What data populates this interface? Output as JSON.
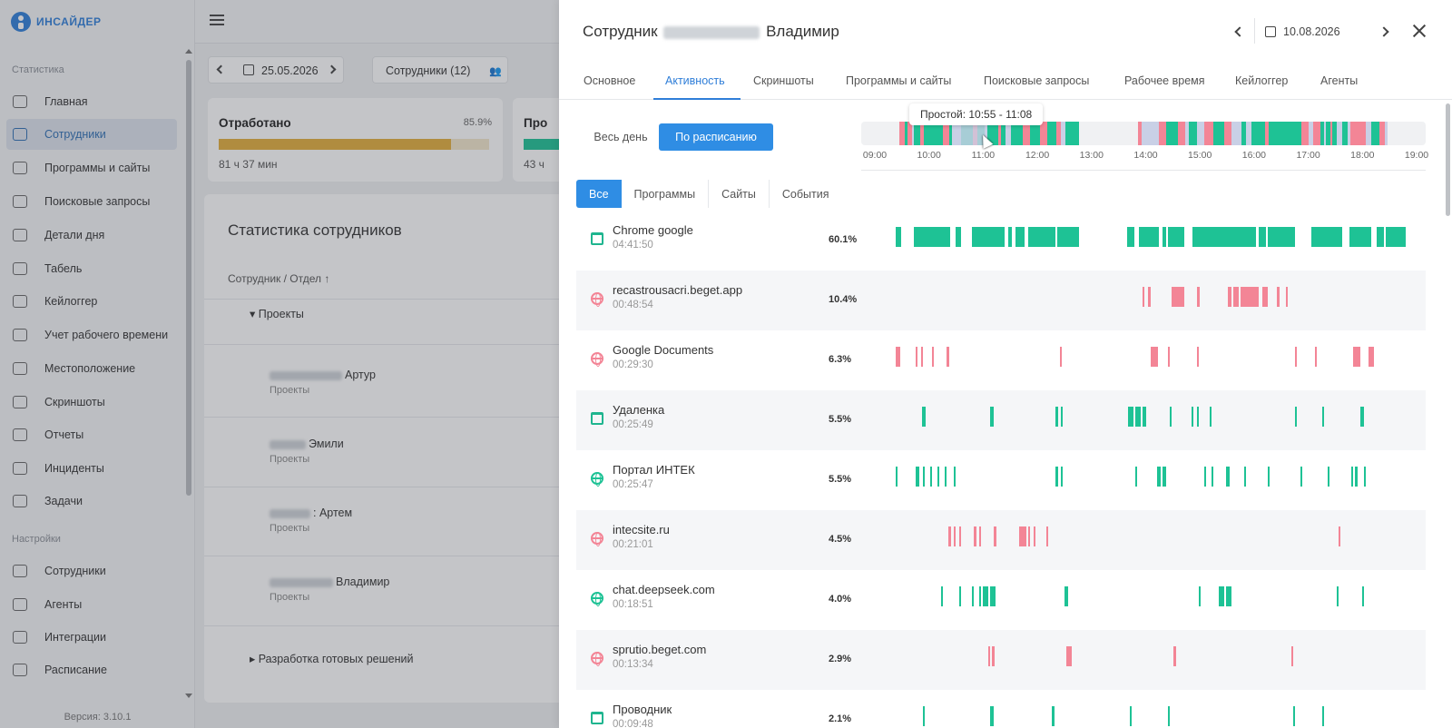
{
  "sidebar": {
    "logo": "ИНСАЙДЕР",
    "section_stats": "Статистика",
    "section_settings": "Настройки",
    "items": [
      {
        "label": "Главная",
        "icon": "grid-icon"
      },
      {
        "label": "Сотрудники",
        "icon": "users-icon",
        "active": true
      },
      {
        "label": "Программы и сайты",
        "icon": "window-icon"
      },
      {
        "label": "Поисковые запросы",
        "icon": "search-icon"
      },
      {
        "label": "Детали дня",
        "icon": "chart-line-icon"
      },
      {
        "label": "Табель",
        "icon": "document-icon"
      },
      {
        "label": "Кейлоггер",
        "icon": "keyboard-icon"
      },
      {
        "label": "Учет рабочего времени",
        "icon": "clock-doc-icon"
      },
      {
        "label": "Местоположение",
        "icon": "location-icon"
      },
      {
        "label": "Скриншоты",
        "icon": "monitor-icon"
      },
      {
        "label": "Отчеты",
        "icon": "report-icon"
      },
      {
        "label": "Инциденты",
        "icon": "alert-icon"
      },
      {
        "label": "Задачи",
        "icon": "check-circle-icon"
      }
    ],
    "settings_items": [
      {
        "label": "Сотрудники",
        "icon": "user-gear-icon"
      },
      {
        "label": "Агенты",
        "icon": "devices-icon"
      },
      {
        "label": "Интеграции",
        "icon": "building-icon"
      },
      {
        "label": "Расписание",
        "icon": "calendar-clock-icon"
      }
    ],
    "version": "Версия: 3.10.1"
  },
  "main": {
    "date": "25.05.2026",
    "employees_button": "Сотрудники (12)",
    "card_worked": {
      "title": "Отработано",
      "percent": "85.9%",
      "value": "81 ч 37 мин",
      "fill": 0.859
    },
    "card_productive": {
      "title": "Про",
      "value": "43 ч"
    },
    "stats_title": "Статистика сотрудников",
    "stats_header": "Сотрудник / Отдел ↑",
    "group_projects": "Проекты",
    "rows": [
      {
        "name": "Артур",
        "dept": "Проекты"
      },
      {
        "name": "Эмили",
        "dept": "Проекты"
      },
      {
        "name": ": Артем",
        "dept": "Проекты"
      },
      {
        "name": "Владимир",
        "dept": "Проекты"
      }
    ],
    "group_solutions": "Разработка готовых решений"
  },
  "drawer": {
    "title_prefix": "Сотрудник",
    "title_suffix": "Владимир",
    "date": "10.08.2026",
    "tabs": [
      "Основное",
      "Активность",
      "Скриншоты",
      "Программы и сайты",
      "Поисковые запросы",
      "Рабочее время",
      "Кейлоггер",
      "Агенты"
    ],
    "active_tab": "Активность",
    "mode_all_day": "Весь день",
    "mode_schedule": "По расписанию",
    "tooltip": "Простой: 10:55 - 11:08",
    "timeline_ticks": [
      "09:00",
      "10:00",
      "11:00",
      "12:00",
      "13:00",
      "14:00",
      "15:00",
      "16:00",
      "17:00",
      "18:00",
      "19:00"
    ],
    "filters": [
      "Все",
      "Программы",
      "Сайты",
      "События"
    ],
    "colors": {
      "productive": "#1ec295",
      "unproductive": "#f38596",
      "idle": "#c9d0e6",
      "accent": "#2f8de4"
    },
    "apps": [
      {
        "name": "Chrome google",
        "time": "04:41:50",
        "percent": "60.1%",
        "icon": "window-icon",
        "color": "productive"
      },
      {
        "name": "recastrousacri.beget.app",
        "time": "00:48:54",
        "percent": "10.4%",
        "icon": "globe-icon",
        "color": "unproductive"
      },
      {
        "name": "Google Documents",
        "time": "00:29:30",
        "percent": "6.3%",
        "icon": "globe-icon",
        "color": "unproductive"
      },
      {
        "name": "Удаленка",
        "time": "00:25:49",
        "percent": "5.5%",
        "icon": "window-icon",
        "color": "productive"
      },
      {
        "name": "Портал ИНТЕК",
        "time": "00:25:47",
        "percent": "5.5%",
        "icon": "globe-icon",
        "color": "productive"
      },
      {
        "name": "intecsite.ru",
        "time": "00:21:01",
        "percent": "4.5%",
        "icon": "globe-icon",
        "color": "unproductive"
      },
      {
        "name": "chat.deepseek.com",
        "time": "00:18:51",
        "percent": "4.0%",
        "icon": "globe-icon",
        "color": "productive"
      },
      {
        "name": "sprutio.beget.com",
        "time": "00:13:34",
        "percent": "2.9%",
        "icon": "globe-icon",
        "color": "unproductive"
      },
      {
        "name": "Проводник",
        "time": "00:09:48",
        "percent": "2.1%",
        "icon": "window-icon",
        "color": "productive"
      }
    ]
  }
}
